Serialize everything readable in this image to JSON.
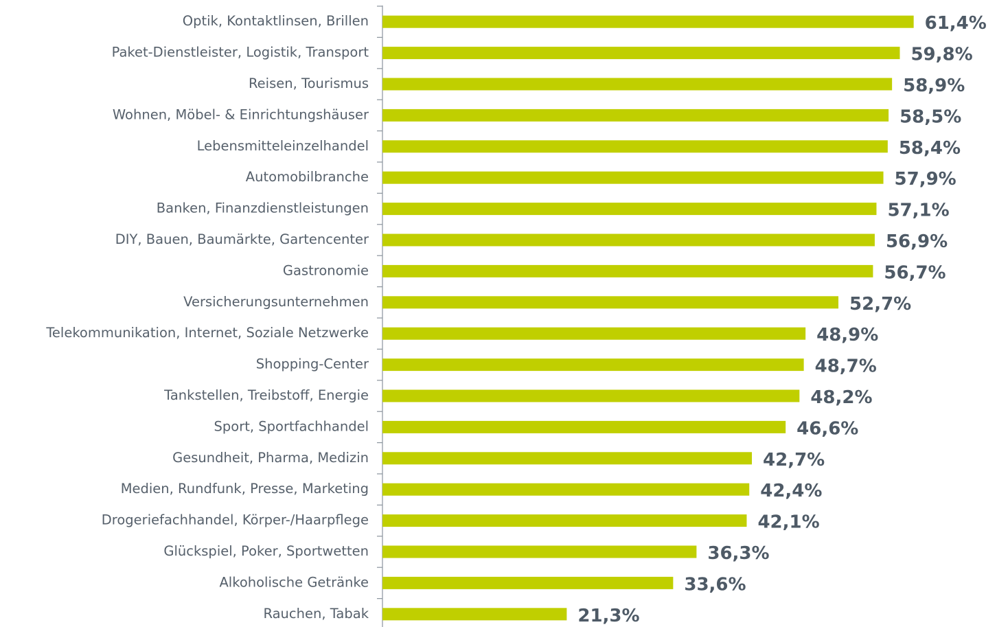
{
  "chart_data": {
    "type": "bar",
    "orientation": "horizontal",
    "color": "#c0cf00",
    "categories": [
      "Optik, Kontaktlinsen, Brillen",
      "Paket-Dienstleister, Logistik, Transport",
      "Reisen, Tourismus",
      "Wohnen, Möbel- & Einrichtungshäuser",
      "Lebensmitteleinzelhandel",
      "Automobilbranche",
      "Banken, Finanzdienstleistungen",
      "DIY, Bauen, Baumärkte, Gartencenter",
      "Gastronomie",
      "Versicherungsunternehmen",
      "Telekommunikation, Internet, Soziale Netzwerke",
      "Shopping-Center",
      "Tankstellen, Treibstoff, Energie",
      "Sport, Sportfachhandel",
      "Gesundheit, Pharma, Medizin",
      "Medien, Rundfunk, Presse, Marketing",
      "Drogeriefachhandel, Körper-/Haarpflege",
      "Glückspiel, Poker, Sportwetten",
      "Alkoholische Getränke",
      "Rauchen, Tabak"
    ],
    "values": [
      61.4,
      59.8,
      58.9,
      58.5,
      58.4,
      57.9,
      57.1,
      56.9,
      56.7,
      52.7,
      48.9,
      48.7,
      48.2,
      46.6,
      42.7,
      42.4,
      42.1,
      36.3,
      33.6,
      21.3
    ],
    "value_labels": [
      "61,4%",
      "59,8%",
      "58,9%",
      "58,5%",
      "58,4%",
      "57,9%",
      "57,1%",
      "56,9%",
      "56,7%",
      "52,7%",
      "48,9%",
      "48,7%",
      "48,2%",
      "46,6%",
      "42,7%",
      "42,4%",
      "42,1%",
      "36,3%",
      "33,6%",
      "21,3%"
    ]
  }
}
